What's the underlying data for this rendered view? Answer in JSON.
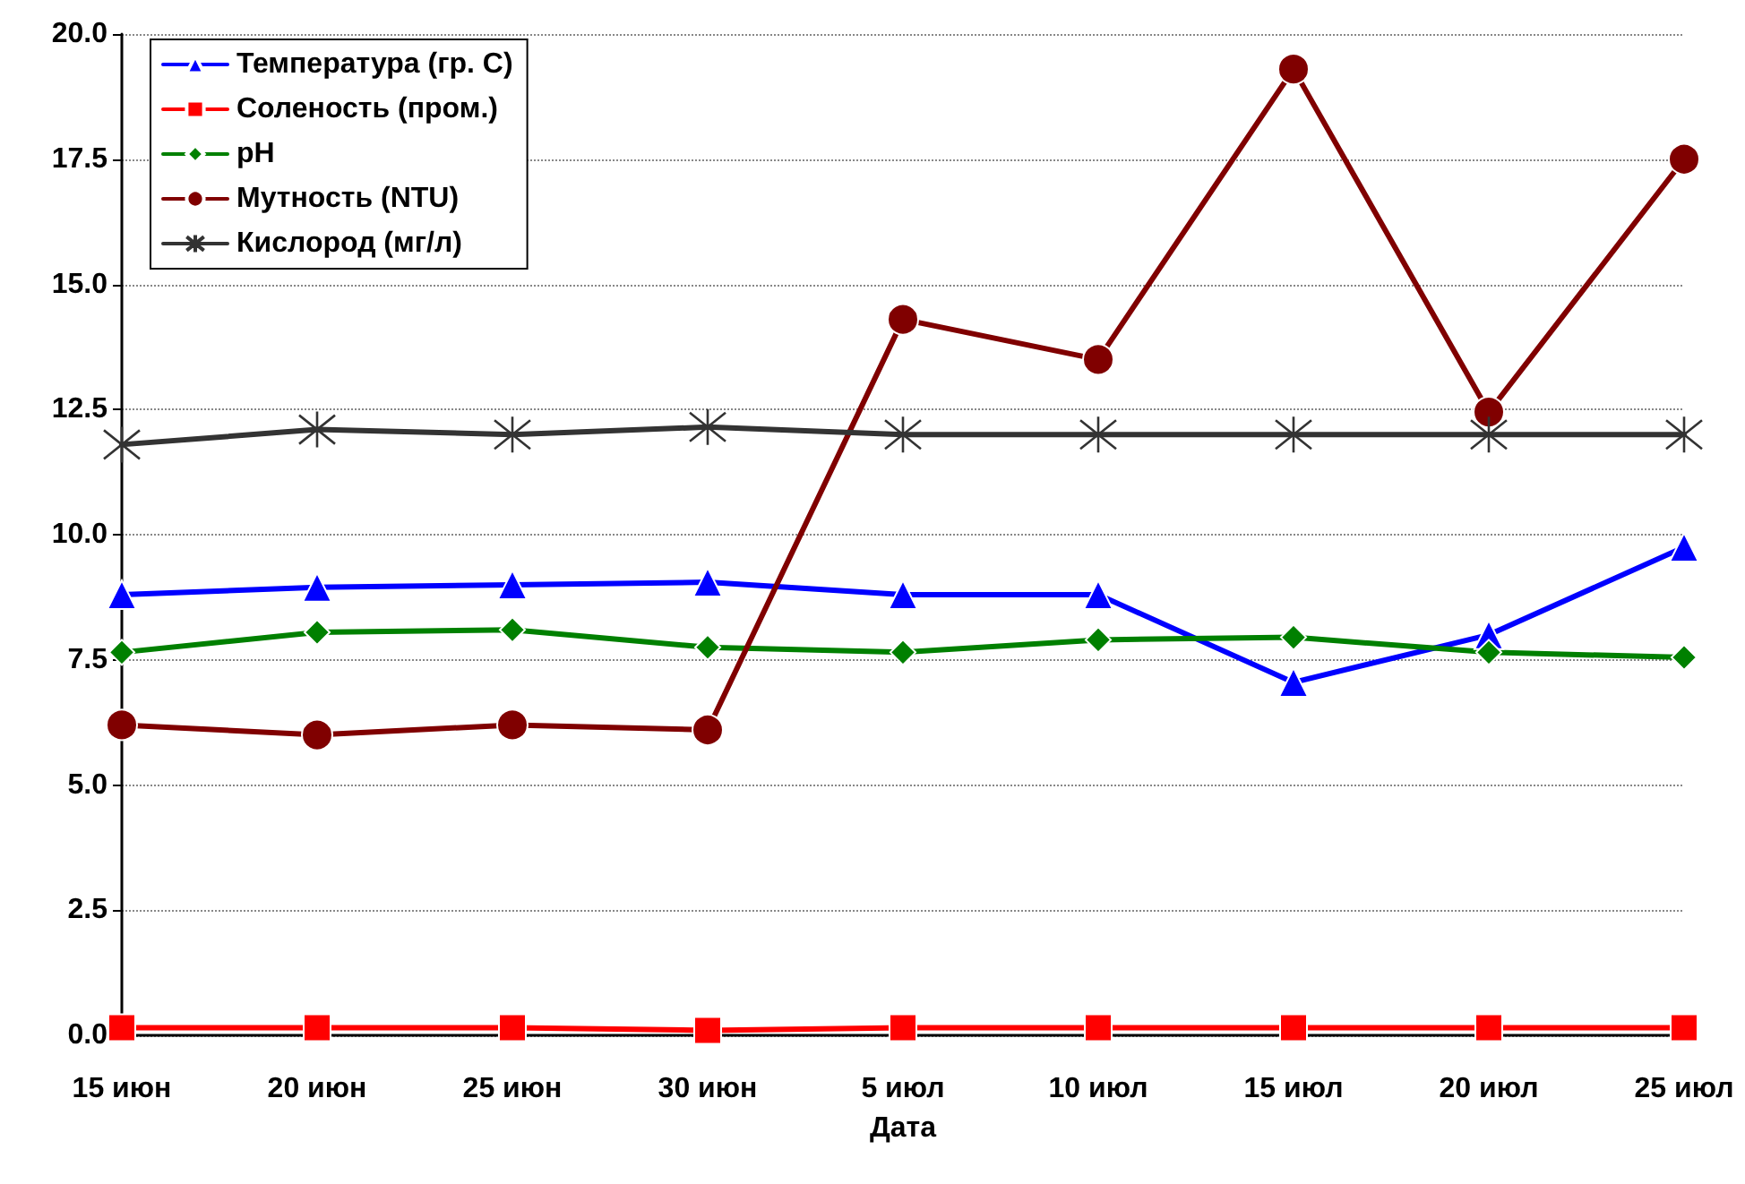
{
  "chart_data": {
    "type": "line",
    "xlabel": "Дата",
    "categories": [
      "15 июн",
      "20 июн",
      "25 июн",
      "30 июн",
      "5 июл",
      "10 июл",
      "15 июл",
      "20 июл",
      "25 июл"
    ],
    "ylim": [
      0,
      20
    ],
    "yticks": [
      {
        "value": 0,
        "label": "0.0"
      },
      {
        "value": 2.5,
        "label": "2.5"
      },
      {
        "value": 5,
        "label": "5.0"
      },
      {
        "value": 7.5,
        "label": "7.5"
      },
      {
        "value": 10,
        "label": "10.0"
      },
      {
        "value": 12.5,
        "label": "12.5"
      },
      {
        "value": 15,
        "label": "15.0"
      },
      {
        "value": 17.5,
        "label": "17.5"
      },
      {
        "value": 20,
        "label": "20.0"
      }
    ],
    "grid": "y",
    "legend": "top left",
    "line_style": "solid",
    "series": [
      {
        "name": "Температура (гр. C)",
        "color": "#0000ff",
        "marker": "triangle",
        "values": [
          8.8,
          8.95,
          9.0,
          9.05,
          8.8,
          8.8,
          7.05,
          8.0,
          9.75
        ]
      },
      {
        "name": "Соленость (пром.)",
        "color": "#ff0000",
        "marker": "square",
        "values": [
          0.15,
          0.15,
          0.15,
          0.1,
          0.15,
          0.15,
          0.15,
          0.15,
          0.15
        ]
      },
      {
        "name": "pH",
        "color": "#008000",
        "marker": "diamond",
        "values": [
          7.65,
          8.05,
          8.1,
          7.75,
          7.65,
          7.9,
          7.95,
          7.65,
          7.55
        ]
      },
      {
        "name": "Мутность (NTU)",
        "color": "#800000",
        "marker": "circle",
        "values": [
          6.2,
          6.0,
          6.2,
          6.1,
          14.3,
          13.5,
          19.3,
          12.45,
          17.5
        ]
      },
      {
        "name": "Кислород (мг/л)",
        "color": "#333333",
        "marker": "cross",
        "values": [
          11.8,
          12.1,
          12.0,
          12.15,
          12.0,
          12.0,
          12.0,
          12.0,
          12.0
        ]
      }
    ]
  }
}
